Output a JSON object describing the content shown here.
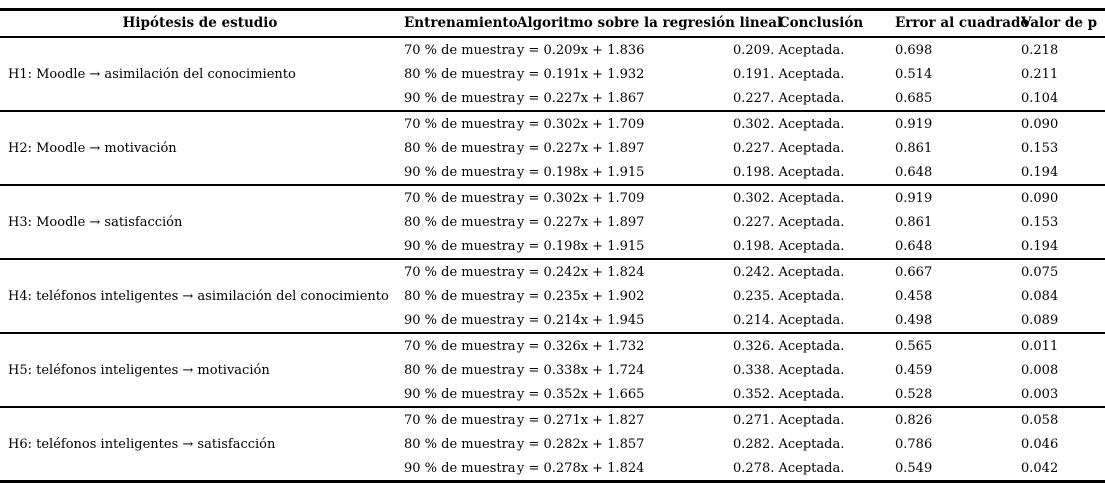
{
  "table": {
    "columns": [
      {
        "label": "Hipótesis de estudio"
      },
      {
        "label": "Entrenamiento"
      },
      {
        "label": "Algoritmo sobre la regresión lineal"
      },
      {
        "label": "Conclusión"
      },
      {
        "label": "Error al cuadrado"
      },
      {
        "label": "Valor de p"
      }
    ],
    "groups": [
      {
        "hypothesis": "H1: Moodle → asimilación del conocimiento",
        "rows": [
          {
            "training": "70 % de muestra",
            "algorithm": "y = 0.209x + 1.836",
            "conclusion": "0.209. Aceptada.",
            "squared_error": "0.698",
            "p_value": "0.218"
          },
          {
            "training": "80 % de muestra",
            "algorithm": "y = 0.191x + 1.932",
            "conclusion": "0.191. Aceptada.",
            "squared_error": "0.514",
            "p_value": "0.211"
          },
          {
            "training": "90 % de muestra",
            "algorithm": "y = 0.227x + 1.867",
            "conclusion": "0.227. Aceptada.",
            "squared_error": "0.685",
            "p_value": "0.104"
          }
        ]
      },
      {
        "hypothesis": "H2: Moodle → motivación",
        "rows": [
          {
            "training": "70 % de muestra",
            "algorithm": "y = 0.302x + 1.709",
            "conclusion": "0.302. Aceptada.",
            "squared_error": "0.919",
            "p_value": "0.090"
          },
          {
            "training": "80 % de muestra",
            "algorithm": "y = 0.227x + 1.897",
            "conclusion": "0.227. Aceptada.",
            "squared_error": "0.861",
            "p_value": "0.153"
          },
          {
            "training": "90 % de muestra",
            "algorithm": "y = 0.198x + 1.915",
            "conclusion": "0.198. Aceptada.",
            "squared_error": "0.648",
            "p_value": "0.194"
          }
        ]
      },
      {
        "hypothesis": "H3: Moodle → satisfacción",
        "rows": [
          {
            "training": "70 % de muestra",
            "algorithm": "y = 0.302x + 1.709",
            "conclusion": "0.302. Aceptada.",
            "squared_error": "0.919",
            "p_value": "0.090"
          },
          {
            "training": "80 % de muestra",
            "algorithm": "y = 0.227x + 1.897",
            "conclusion": "0.227. Aceptada.",
            "squared_error": "0.861",
            "p_value": "0.153"
          },
          {
            "training": "90 % de muestra",
            "algorithm": "y = 0.198x + 1.915",
            "conclusion": "0.198. Aceptada.",
            "squared_error": "0.648",
            "p_value": "0.194"
          }
        ]
      },
      {
        "hypothesis": "H4: teléfonos inteligentes → asimilación del conocimiento",
        "rows": [
          {
            "training": "70 % de muestra",
            "algorithm": "y = 0.242x + 1.824",
            "conclusion": "0.242. Aceptada.",
            "squared_error": "0.667",
            "p_value": "0.075"
          },
          {
            "training": "80 % de muestra",
            "algorithm": "y = 0.235x + 1.902",
            "conclusion": "0.235. Aceptada.",
            "squared_error": "0.458",
            "p_value": "0.084"
          },
          {
            "training": "90 % de muestra",
            "algorithm": "y = 0.214x + 1.945",
            "conclusion": "0.214. Aceptada.",
            "squared_error": "0.498",
            "p_value": "0.089"
          }
        ]
      },
      {
        "hypothesis": "H5: teléfonos inteligentes → motivación",
        "rows": [
          {
            "training": "70 % de muestra",
            "algorithm": "y = 0.326x + 1.732",
            "conclusion": "0.326. Aceptada.",
            "squared_error": "0.565",
            "p_value": "0.011"
          },
          {
            "training": "80 % de muestra",
            "algorithm": "y = 0.338x + 1.724",
            "conclusion": "0.338. Aceptada.",
            "squared_error": "0.459",
            "p_value": "0.008"
          },
          {
            "training": "90 % de muestra",
            "algorithm": "y = 0.352x + 1.665",
            "conclusion": "0.352. Aceptada.",
            "squared_error": "0.528",
            "p_value": "0.003"
          }
        ]
      },
      {
        "hypothesis": "H6: teléfonos inteligentes → satisfacción",
        "rows": [
          {
            "training": "70 % de muestra",
            "algorithm": "y = 0.271x + 1.827",
            "conclusion": "0.271. Aceptada.",
            "squared_error": "0.826",
            "p_value": "0.058"
          },
          {
            "training": "80 % de muestra",
            "algorithm": "y = 0.282x + 1.857",
            "conclusion": "0.282. Aceptada.",
            "squared_error": "0.786",
            "p_value": "0.046"
          },
          {
            "training": "90 % de muestra",
            "algorithm": "y = 0.278x + 1.824",
            "conclusion": "0.278. Aceptada.",
            "squared_error": "0.549",
            "p_value": "0.042"
          }
        ]
      }
    ]
  },
  "colors": {
    "text": "#000000",
    "background": "#ffffff",
    "rule": "#000000"
  }
}
